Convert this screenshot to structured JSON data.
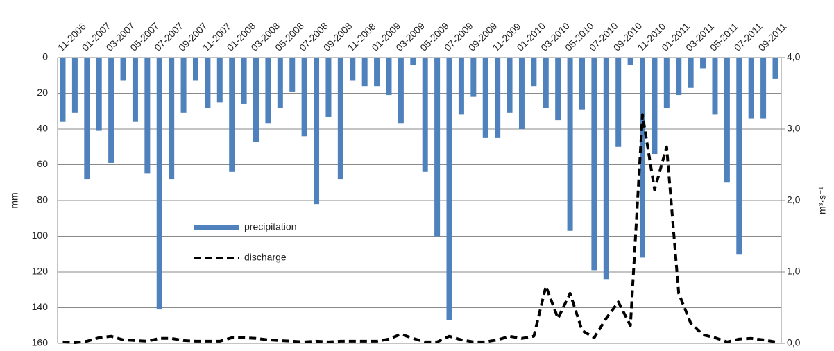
{
  "chart_data": {
    "type": "bar_line",
    "categories": [
      "11-2006",
      null,
      "01-2007",
      null,
      "03-2007",
      null,
      "05-2007",
      null,
      "07-2007",
      null,
      "09-2007",
      null,
      "11-2007",
      null,
      "01-2008",
      null,
      "03-2008",
      null,
      "05-2008",
      null,
      "07-2008",
      null,
      "09-2008",
      null,
      "11-2008",
      null,
      "01-2009",
      null,
      "03-2009",
      null,
      "05-2009",
      null,
      "07-2009",
      null,
      "09-2009",
      null,
      "11-2009",
      null,
      "01-2010",
      null,
      "03-2010",
      null,
      "05-2010",
      null,
      "07-2010",
      null,
      "09-2010",
      null,
      "11-2010",
      null,
      "01-2011",
      null,
      "03-2011",
      null,
      "05-2011",
      null,
      "07-2011",
      null,
      "09-2011",
      null
    ],
    "series": [
      {
        "name": "precipitation",
        "type": "bar",
        "color": "#4f81bd",
        "values": [
          36,
          31,
          68,
          41,
          59,
          13,
          36,
          65,
          141,
          68,
          31,
          13,
          28,
          25,
          64,
          26,
          47,
          37,
          28,
          19,
          44,
          82,
          33,
          68,
          13,
          16,
          16,
          21,
          37,
          4,
          64,
          100,
          147,
          32,
          22,
          45,
          45,
          31,
          40,
          16,
          28,
          35,
          97,
          29,
          119,
          124,
          50,
          4,
          112,
          54,
          28,
          21,
          17,
          6,
          32,
          70,
          110,
          34,
          34,
          12
        ]
      },
      {
        "name": "discharge",
        "type": "line",
        "axis": "y2",
        "color": "#000000",
        "dashed": true,
        "values": [
          0.02,
          0.01,
          0.03,
          0.08,
          0.1,
          0.05,
          0.04,
          0.03,
          0.07,
          0.07,
          0.04,
          0.03,
          0.03,
          0.03,
          0.08,
          0.08,
          0.07,
          0.05,
          0.04,
          0.03,
          0.02,
          0.03,
          0.02,
          0.03,
          0.03,
          0.03,
          0.03,
          0.06,
          0.13,
          0.07,
          0.02,
          0.02,
          0.1,
          0.05,
          0.02,
          0.02,
          0.05,
          0.1,
          0.07,
          0.1,
          0.8,
          0.35,
          0.7,
          0.18,
          0.08,
          0.35,
          0.58,
          0.25,
          3.2,
          2.15,
          2.75,
          0.7,
          0.28,
          0.12,
          0.08,
          0.02,
          0.06,
          0.07,
          0.05,
          0.02
        ]
      }
    ],
    "ylabel": "mm",
    "y2label": "m³·s⁻¹",
    "ylim": [
      0,
      160
    ],
    "y_inverted": true,
    "yticks": [
      0,
      20,
      40,
      60,
      80,
      100,
      120,
      140,
      160
    ],
    "y2lim": [
      0,
      4
    ],
    "y2ticks": [
      {
        "value": 0,
        "label": "0,0"
      },
      {
        "value": 1,
        "label": "1,0"
      },
      {
        "value": 2,
        "label": "2,0"
      },
      {
        "value": 3,
        "label": "3,0"
      },
      {
        "value": 4,
        "label": "4,0"
      }
    ],
    "grid": true,
    "legend": "center-left"
  }
}
